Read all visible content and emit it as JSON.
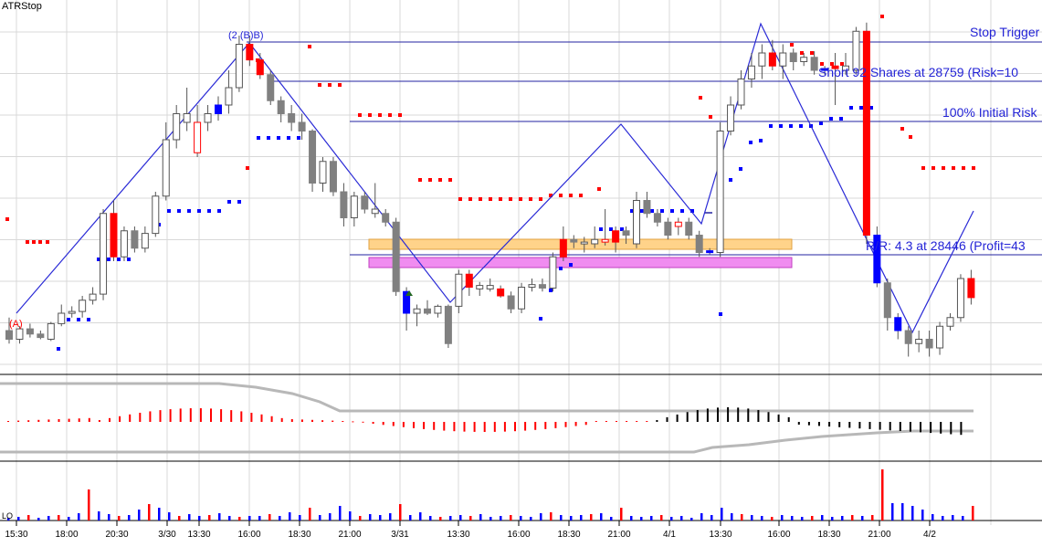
{
  "title": "ATRStop",
  "annotations": {
    "stop_trigger": "Stop Trigger",
    "short_entry": "Short 92 Shares at 28759 (Risk=10",
    "initial_risk": "100% Initial Risk",
    "reward_risk": "R/R: 4.3 at 28446 (Profit=43",
    "pivot_a": "(A)",
    "pivot_2b": "(2 (B)B)"
  },
  "x_axis": {
    "ticks": [
      "15:30",
      "18:00",
      "20:30",
      "3/30",
      "13:30",
      "16:00",
      "18:30",
      "21:00",
      "3/31",
      "13:30",
      "16:00",
      "18:30",
      "21:00",
      "4/1",
      "13:30",
      "16:00",
      "18:30",
      "21:00",
      "4/2"
    ]
  },
  "lower_panel_label": "LO",
  "colors": {
    "up_candle": "#ffffff",
    "down_candle": "#808080",
    "signal_candle": "#ff0000",
    "blue_candle": "#0000ff",
    "stop_dots_red": "#ff0000",
    "stop_dots_blue": "#0000ff",
    "zigzag": "#2a2ad6",
    "orange_zone": "#ffd38a",
    "magenta_zone": "#f08cf0",
    "grid": "#d8d8d8"
  },
  "chart_data": {
    "type": "candlestick",
    "price_unit": "price",
    "note_scale": "price units reconstructed from labels 28759 and 28446",
    "candles": [
      {
        "o": 28440,
        "h": 28455,
        "l": 28425,
        "c": 28430,
        "col": "down"
      },
      {
        "o": 28430,
        "h": 28445,
        "l": 28425,
        "c": 28442,
        "col": "up"
      },
      {
        "o": 28442,
        "h": 28448,
        "l": 28432,
        "c": 28436,
        "col": "down"
      },
      {
        "o": 28436,
        "h": 28440,
        "l": 28430,
        "c": 28432,
        "col": "down"
      },
      {
        "o": 28430,
        "h": 28450,
        "l": 28428,
        "c": 28448,
        "col": "up"
      },
      {
        "o": 28448,
        "h": 28470,
        "l": 28445,
        "c": 28460,
        "col": "up"
      },
      {
        "o": 28460,
        "h": 28468,
        "l": 28455,
        "c": 28462,
        "col": "up"
      },
      {
        "o": 28462,
        "h": 28480,
        "l": 28455,
        "c": 28475,
        "col": "up"
      },
      {
        "o": 28475,
        "h": 28490,
        "l": 28470,
        "c": 28482,
        "col": "up"
      },
      {
        "o": 28482,
        "h": 28580,
        "l": 28475,
        "c": 28575,
        "col": "up"
      },
      {
        "o": 28575,
        "h": 28590,
        "l": 28520,
        "c": 28525,
        "col": "signal"
      },
      {
        "o": 28525,
        "h": 28560,
        "l": 28520,
        "c": 28555,
        "col": "up"
      },
      {
        "o": 28555,
        "h": 28560,
        "l": 28530,
        "c": 28535,
        "col": "down"
      },
      {
        "o": 28535,
        "h": 28560,
        "l": 28530,
        "c": 28552,
        "col": "up"
      },
      {
        "o": 28552,
        "h": 28600,
        "l": 28548,
        "c": 28595,
        "col": "up"
      },
      {
        "o": 28595,
        "h": 28680,
        "l": 28590,
        "c": 28660,
        "col": "up"
      },
      {
        "o": 28660,
        "h": 28700,
        "l": 28650,
        "c": 28690,
        "col": "up"
      },
      {
        "o": 28690,
        "h": 28720,
        "l": 28670,
        "c": 28680,
        "col": "up"
      },
      {
        "o": 28680,
        "h": 28700,
        "l": 28640,
        "c": 28645,
        "col": "signalhollow"
      },
      {
        "o": 28680,
        "h": 28700,
        "l": 28670,
        "c": 28690,
        "col": "up"
      },
      {
        "o": 28690,
        "h": 28710,
        "l": 28682,
        "c": 28700,
        "col": "blue"
      },
      {
        "o": 28700,
        "h": 28740,
        "l": 28690,
        "c": 28720,
        "col": "up"
      },
      {
        "o": 28720,
        "h": 28780,
        "l": 28715,
        "c": 28770,
        "col": "up"
      },
      {
        "o": 28770,
        "h": 28780,
        "l": 28745,
        "c": 28752,
        "col": "signal"
      },
      {
        "o": 28752,
        "h": 28760,
        "l": 28730,
        "c": 28735,
        "col": "signal"
      },
      {
        "o": 28735,
        "h": 28740,
        "l": 28700,
        "c": 28705,
        "col": "down"
      },
      {
        "o": 28705,
        "h": 28710,
        "l": 28680,
        "c": 28690,
        "col": "down"
      },
      {
        "o": 28690,
        "h": 28700,
        "l": 28670,
        "c": 28680,
        "col": "down"
      },
      {
        "o": 28680,
        "h": 28690,
        "l": 28660,
        "c": 28670,
        "col": "down"
      },
      {
        "o": 28670,
        "h": 28672,
        "l": 28600,
        "c": 28610,
        "col": "down"
      },
      {
        "o": 28610,
        "h": 28640,
        "l": 28600,
        "c": 28635,
        "col": "up"
      },
      {
        "o": 28635,
        "h": 28640,
        "l": 28595,
        "c": 28600,
        "col": "down"
      },
      {
        "o": 28600,
        "h": 28610,
        "l": 28560,
        "c": 28570,
        "col": "down"
      },
      {
        "o": 28570,
        "h": 28600,
        "l": 28560,
        "c": 28595,
        "col": "up"
      },
      {
        "o": 28595,
        "h": 28600,
        "l": 28575,
        "c": 28580,
        "col": "down"
      },
      {
        "o": 28580,
        "h": 28610,
        "l": 28570,
        "c": 28575,
        "col": "up"
      },
      {
        "o": 28575,
        "h": 28580,
        "l": 28560,
        "c": 28565,
        "col": "down"
      },
      {
        "o": 28565,
        "h": 28570,
        "l": 28480,
        "c": 28485,
        "col": "down"
      },
      {
        "o": 28485,
        "h": 28490,
        "l": 28440,
        "c": 28460,
        "col": "blue"
      },
      {
        "o": 28460,
        "h": 28470,
        "l": 28445,
        "c": 28465,
        "col": "up"
      },
      {
        "o": 28465,
        "h": 28475,
        "l": 28458,
        "c": 28460,
        "col": "down"
      },
      {
        "o": 28460,
        "h": 28470,
        "l": 28455,
        "c": 28468,
        "col": "up"
      },
      {
        "o": 28468,
        "h": 28470,
        "l": 28420,
        "c": 28425,
        "col": "down"
      },
      {
        "o": 28468,
        "h": 28510,
        "l": 28460,
        "c": 28505,
        "col": "up"
      },
      {
        "o": 28505,
        "h": 28510,
        "l": 28480,
        "c": 28490,
        "col": "signal"
      },
      {
        "o": 28488,
        "h": 28496,
        "l": 28480,
        "c": 28492,
        "col": "up"
      },
      {
        "o": 28492,
        "h": 28500,
        "l": 28485,
        "c": 28488,
        "col": "up"
      },
      {
        "o": 28488,
        "h": 28492,
        "l": 28478,
        "c": 28480,
        "col": "signal"
      },
      {
        "o": 28480,
        "h": 28485,
        "l": 28460,
        "c": 28465,
        "col": "down"
      },
      {
        "o": 28465,
        "h": 28495,
        "l": 28460,
        "c": 28490,
        "col": "up"
      },
      {
        "o": 28490,
        "h": 28500,
        "l": 28485,
        "c": 28493,
        "col": "up"
      },
      {
        "o": 28493,
        "h": 28500,
        "l": 28485,
        "c": 28489,
        "col": "down"
      },
      {
        "o": 28489,
        "h": 28530,
        "l": 28485,
        "c": 28525,
        "col": "up"
      },
      {
        "o": 28525,
        "h": 28560,
        "l": 28520,
        "c": 28545,
        "col": "signal"
      },
      {
        "o": 28545,
        "h": 28550,
        "l": 28535,
        "c": 28542,
        "col": "down"
      },
      {
        "o": 28542,
        "h": 28548,
        "l": 28530,
        "c": 28540,
        "col": "up"
      },
      {
        "o": 28540,
        "h": 28560,
        "l": 28535,
        "c": 28545,
        "col": "up"
      },
      {
        "o": 28545,
        "h": 28580,
        "l": 28538,
        "c": 28542,
        "col": "signalhollow"
      },
      {
        "o": 28542,
        "h": 28560,
        "l": 28530,
        "c": 28555,
        "col": "signal"
      },
      {
        "o": 28555,
        "h": 28560,
        "l": 28540,
        "c": 28550,
        "col": "down"
      },
      {
        "o": 28540,
        "h": 28600,
        "l": 28535,
        "c": 28590,
        "col": "up"
      },
      {
        "o": 28590,
        "h": 28600,
        "l": 28570,
        "c": 28575,
        "col": "down"
      },
      {
        "o": 28575,
        "h": 28580,
        "l": 28560,
        "c": 28565,
        "col": "down"
      },
      {
        "o": 28565,
        "h": 28570,
        "l": 28545,
        "c": 28550,
        "col": "down"
      },
      {
        "o": 28560,
        "h": 28570,
        "l": 28550,
        "c": 28565,
        "col": "signalhollow"
      },
      {
        "o": 28565,
        "h": 28570,
        "l": 28545,
        "c": 28550,
        "col": "down"
      },
      {
        "o": 28550,
        "h": 28555,
        "l": 28525,
        "c": 28530,
        "col": "down"
      },
      {
        "o": 28530,
        "h": 28535,
        "l": 28528,
        "c": 28532,
        "col": "blue"
      },
      {
        "o": 28530,
        "h": 28680,
        "l": 28525,
        "c": 28670,
        "col": "up"
      },
      {
        "o": 28670,
        "h": 28710,
        "l": 28665,
        "c": 28700,
        "col": "up"
      },
      {
        "o": 28700,
        "h": 28740,
        "l": 28695,
        "c": 28730,
        "col": "up"
      },
      {
        "o": 28730,
        "h": 28760,
        "l": 28720,
        "c": 28745,
        "col": "up"
      },
      {
        "o": 28745,
        "h": 28770,
        "l": 28730,
        "c": 28760,
        "col": "up"
      },
      {
        "o": 28760,
        "h": 28775,
        "l": 28740,
        "c": 28745,
        "col": "signal"
      },
      {
        "o": 28745,
        "h": 28770,
        "l": 28730,
        "c": 28760,
        "col": "up"
      },
      {
        "o": 28760,
        "h": 28765,
        "l": 28740,
        "c": 28750,
        "col": "down"
      },
      {
        "o": 28750,
        "h": 28760,
        "l": 28745,
        "c": 28755,
        "col": "up"
      },
      {
        "o": 28755,
        "h": 28762,
        "l": 28735,
        "c": 28740,
        "col": "down"
      },
      {
        "o": 28740,
        "h": 28745,
        "l": 28735,
        "c": 28742,
        "col": "blue"
      },
      {
        "o": 28742,
        "h": 28760,
        "l": 28700,
        "c": 28745,
        "col": "signal"
      },
      {
        "o": 28745,
        "h": 28760,
        "l": 28735,
        "c": 28740,
        "col": "up"
      },
      {
        "o": 28740,
        "h": 28790,
        "l": 28735,
        "c": 28785,
        "col": "up"
      },
      {
        "o": 28785,
        "h": 28795,
        "l": 28540,
        "c": 28550,
        "col": "signal"
      },
      {
        "o": 28550,
        "h": 28560,
        "l": 28490,
        "c": 28495,
        "col": "blue"
      },
      {
        "o": 28495,
        "h": 28500,
        "l": 28440,
        "c": 28455,
        "col": "down"
      },
      {
        "o": 28455,
        "h": 28460,
        "l": 28430,
        "c": 28440,
        "col": "blue"
      },
      {
        "o": 28440,
        "h": 28445,
        "l": 28410,
        "c": 28425,
        "col": "down"
      },
      {
        "o": 28425,
        "h": 28440,
        "l": 28415,
        "c": 28430,
        "col": "up"
      },
      {
        "o": 28430,
        "h": 28440,
        "l": 28410,
        "c": 28420,
        "col": "down"
      },
      {
        "o": 28420,
        "h": 28450,
        "l": 28412,
        "c": 28445,
        "col": "up"
      },
      {
        "o": 28445,
        "h": 28460,
        "l": 28440,
        "c": 28455,
        "col": "up"
      },
      {
        "o": 28455,
        "h": 28505,
        "l": 28450,
        "c": 28500,
        "col": "up"
      },
      {
        "o": 28500,
        "h": 28510,
        "l": 28470,
        "c": 28478,
        "col": "signal"
      }
    ],
    "reference_lines": [
      {
        "label": "Stop Trigger",
        "price": 28790
      },
      {
        "label": "Short 92 Shares at 28759 (Risk=10",
        "price": 28759
      },
      {
        "label": "100% Initial Risk",
        "price": 28729
      },
      {
        "label": "R/R: 4.3 at 28446 (Profit=43",
        "price": 28446
      }
    ]
  }
}
